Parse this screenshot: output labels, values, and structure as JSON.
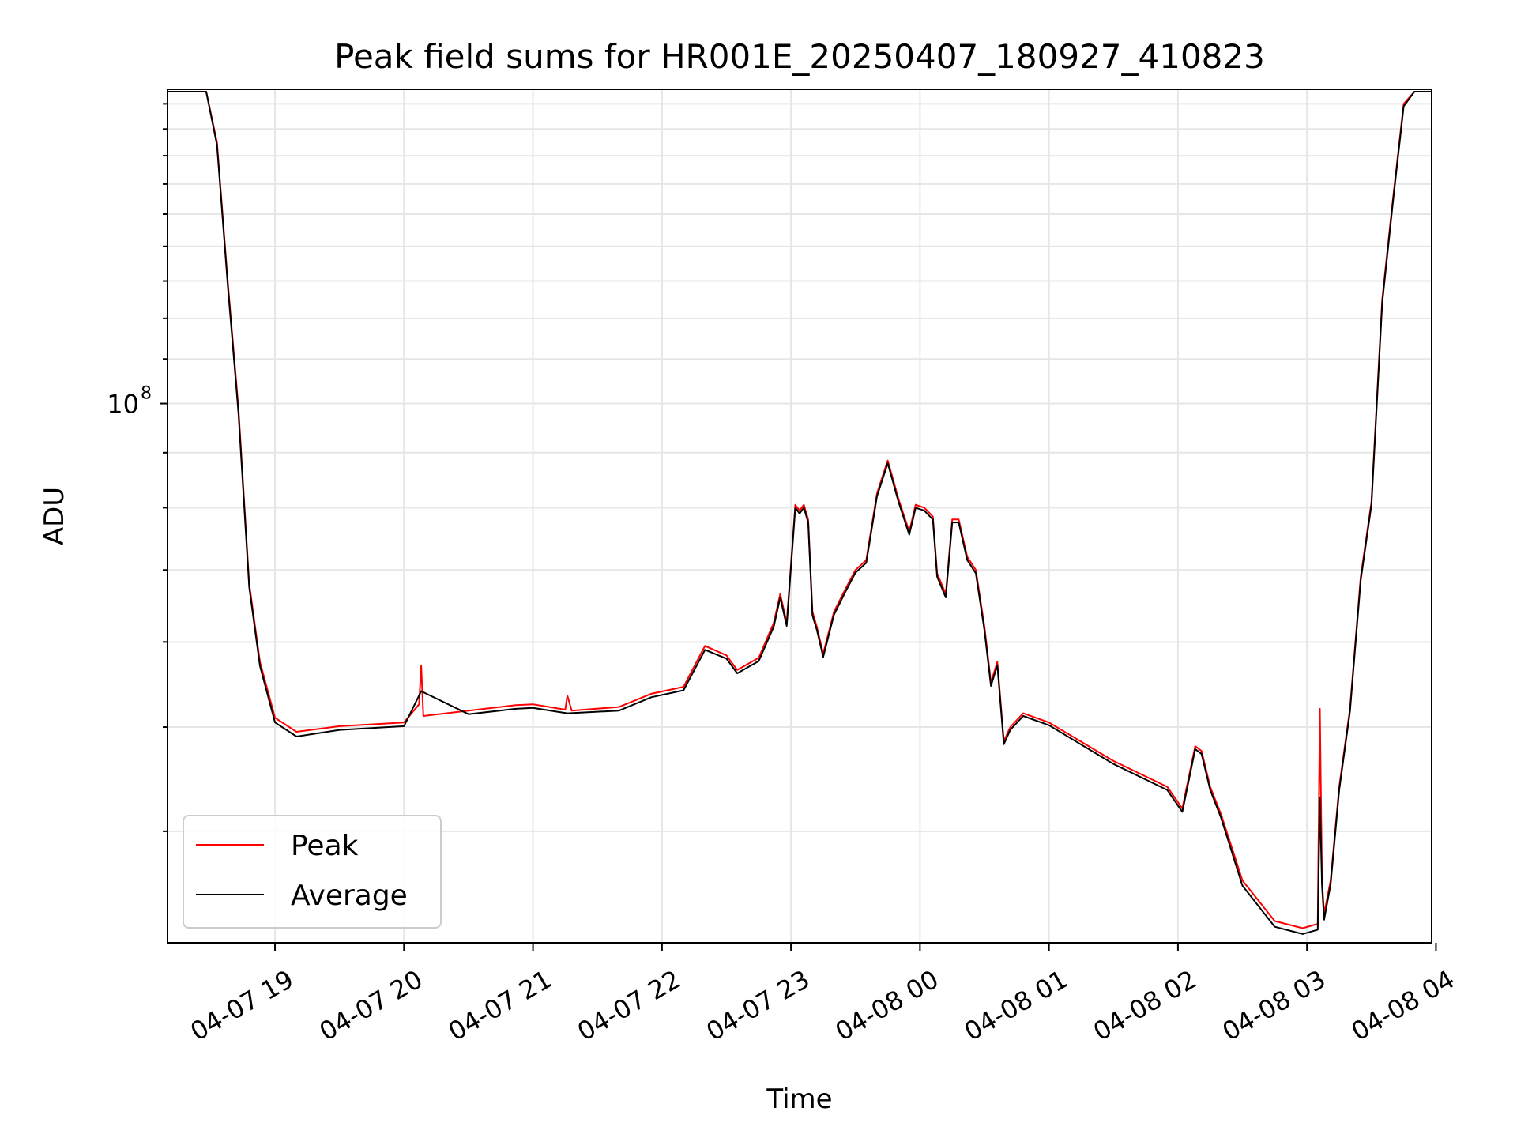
{
  "chart_data": {
    "type": "line",
    "title": "Peak field sums for HR001E_20250407_180927_410823",
    "xlabel": "Time",
    "ylabel": "ADU",
    "y_scale": "log",
    "x_range": [
      "2025-04-07 18:10",
      "2025-04-08 03:58"
    ],
    "ylim": [
      31500000,
      196000000
    ],
    "x_ticks": [
      "04-07 19",
      "04-07 20",
      "04-07 21",
      "04-07 22",
      "04-07 23",
      "04-08 00",
      "04-08 01",
      "04-08 02",
      "04-08 03",
      "04-08 04"
    ],
    "y_tick_labels": [
      {
        "value": 100000000,
        "base": "10",
        "exponent": "8"
      }
    ],
    "grid": true,
    "legend_position": "lower-left",
    "series": [
      {
        "name": "Peak",
        "color": "#ff0000",
        "x": [
          "2025-04-07 18:10",
          "2025-04-07 18:28",
          "2025-04-07 18:33",
          "2025-04-07 18:38",
          "2025-04-07 18:43",
          "2025-04-07 18:48",
          "2025-04-07 18:53",
          "2025-04-07 19:00",
          "2025-04-07 19:10",
          "2025-04-07 19:30",
          "2025-04-07 20:00",
          "2025-04-07 20:07",
          "2025-04-07 20:08",
          "2025-04-07 20:09",
          "2025-04-07 20:30",
          "2025-04-07 20:52",
          "2025-04-07 21:00",
          "2025-04-07 21:15",
          "2025-04-07 21:16",
          "2025-04-07 21:18",
          "2025-04-07 21:40",
          "2025-04-07 21:55",
          "2025-04-07 22:10",
          "2025-04-07 22:20",
          "2025-04-07 22:30",
          "2025-04-07 22:35",
          "2025-04-07 22:45",
          "2025-04-07 22:52",
          "2025-04-07 22:55",
          "2025-04-07 22:58",
          "2025-04-07 23:02",
          "2025-04-07 23:04",
          "2025-04-07 23:06",
          "2025-04-07 23:08",
          "2025-04-07 23:10",
          "2025-04-07 23:12",
          "2025-04-07 23:15",
          "2025-04-07 23:20",
          "2025-04-07 23:25",
          "2025-04-07 23:30",
          "2025-04-07 23:35",
          "2025-04-07 23:40",
          "2025-04-07 23:45",
          "2025-04-07 23:50",
          "2025-04-07 23:55",
          "2025-04-07 23:58",
          "2025-04-08 00:02",
          "2025-04-08 00:06",
          "2025-04-08 00:08",
          "2025-04-08 00:12",
          "2025-04-08 00:15",
          "2025-04-08 00:18",
          "2025-04-08 00:22",
          "2025-04-08 00:26",
          "2025-04-08 00:30",
          "2025-04-08 00:33",
          "2025-04-08 00:36",
          "2025-04-08 00:39",
          "2025-04-08 00:42",
          "2025-04-08 00:48",
          "2025-04-08 01:00",
          "2025-04-08 01:30",
          "2025-04-08 01:55",
          "2025-04-08 02:02",
          "2025-04-08 02:08",
          "2025-04-08 02:11",
          "2025-04-08 02:15",
          "2025-04-08 02:20",
          "2025-04-08 02:30",
          "2025-04-08 02:45",
          "2025-04-08 02:58",
          "2025-04-08 03:05",
          "2025-04-08 03:06",
          "2025-04-08 03:07",
          "2025-04-08 03:08",
          "2025-04-08 03:11",
          "2025-04-08 03:15",
          "2025-04-08 03:20",
          "2025-04-08 03:25",
          "2025-04-08 03:30",
          "2025-04-08 03:35",
          "2025-04-08 03:40",
          "2025-04-08 03:45",
          "2025-04-08 03:50",
          "2025-04-08 03:54",
          "2025-04-08 03:58"
        ],
        "y": [
          195000000,
          195000000,
          175000000,
          130000000,
          99000000,
          68000000,
          57500000,
          51000000,
          49500000,
          50100000,
          50500000,
          52500000,
          57000000,
          51200000,
          51800000,
          52400000,
          52500000,
          51900000,
          53500000,
          51800000,
          52200000,
          53700000,
          54500000,
          59500000,
          58300000,
          56500000,
          58000000,
          62500000,
          66500000,
          62500000,
          80500000,
          79500000,
          80500000,
          78000000,
          64000000,
          62000000,
          58500000,
          64000000,
          67000000,
          70000000,
          71500000,
          82500000,
          88500000,
          81500000,
          76000000,
          80500000,
          80000000,
          78500000,
          69500000,
          66500000,
          78000000,
          78000000,
          72000000,
          70000000,
          62000000,
          55000000,
          57500000,
          48500000,
          50000000,
          51500000,
          50500000,
          46500000,
          44000000,
          42000000,
          48000000,
          47500000,
          44000000,
          41500000,
          36000000,
          33000000,
          32500000,
          32800000,
          52000000,
          36000000,
          33500000,
          36000000,
          44000000,
          52000000,
          69000000,
          81000000,
          125000000,
          155000000,
          190000000,
          195000000,
          195000000,
          195000000
        ]
      },
      {
        "name": "Average",
        "color": "#000000",
        "x": [
          "2025-04-07 18:10",
          "2025-04-07 18:28",
          "2025-04-07 18:33",
          "2025-04-07 18:38",
          "2025-04-07 18:43",
          "2025-04-07 18:48",
          "2025-04-07 18:53",
          "2025-04-07 19:00",
          "2025-04-07 19:10",
          "2025-04-07 19:30",
          "2025-04-07 20:00",
          "2025-04-07 20:08",
          "2025-04-07 20:30",
          "2025-04-07 20:52",
          "2025-04-07 21:00",
          "2025-04-07 21:16",
          "2025-04-07 21:40",
          "2025-04-07 21:55",
          "2025-04-07 22:10",
          "2025-04-07 22:20",
          "2025-04-07 22:30",
          "2025-04-07 22:35",
          "2025-04-07 22:45",
          "2025-04-07 22:52",
          "2025-04-07 22:55",
          "2025-04-07 22:58",
          "2025-04-07 23:02",
          "2025-04-07 23:04",
          "2025-04-07 23:06",
          "2025-04-07 23:08",
          "2025-04-07 23:10",
          "2025-04-07 23:12",
          "2025-04-07 23:15",
          "2025-04-07 23:20",
          "2025-04-07 23:25",
          "2025-04-07 23:30",
          "2025-04-07 23:35",
          "2025-04-07 23:40",
          "2025-04-07 23:45",
          "2025-04-07 23:50",
          "2025-04-07 23:55",
          "2025-04-07 23:58",
          "2025-04-08 00:02",
          "2025-04-08 00:06",
          "2025-04-08 00:08",
          "2025-04-08 00:12",
          "2025-04-08 00:15",
          "2025-04-08 00:18",
          "2025-04-08 00:22",
          "2025-04-08 00:26",
          "2025-04-08 00:30",
          "2025-04-08 00:33",
          "2025-04-08 00:36",
          "2025-04-08 00:39",
          "2025-04-08 00:42",
          "2025-04-08 00:48",
          "2025-04-08 01:00",
          "2025-04-08 01:30",
          "2025-04-08 01:55",
          "2025-04-08 02:02",
          "2025-04-08 02:08",
          "2025-04-08 02:11",
          "2025-04-08 02:15",
          "2025-04-08 02:20",
          "2025-04-08 02:30",
          "2025-04-08 02:45",
          "2025-04-08 02:58",
          "2025-04-08 03:05",
          "2025-04-08 03:06",
          "2025-04-08 03:07",
          "2025-04-08 03:08",
          "2025-04-08 03:11",
          "2025-04-08 03:15",
          "2025-04-08 03:20",
          "2025-04-08 03:25",
          "2025-04-08 03:30",
          "2025-04-08 03:35",
          "2025-04-08 03:40",
          "2025-04-08 03:45",
          "2025-04-08 03:50",
          "2025-04-08 03:54",
          "2025-04-08 03:58"
        ],
        "y": [
          195000000,
          195000000,
          174000000,
          129000000,
          98000000,
          67500000,
          57000000,
          50500000,
          49000000,
          49700000,
          50100000,
          54000000,
          51400000,
          52000000,
          52100000,
          51500000,
          51800000,
          53300000,
          54100000,
          59000000,
          57900000,
          56100000,
          57600000,
          62000000,
          66000000,
          62100000,
          80000000,
          79000000,
          80000000,
          77500000,
          63500000,
          61600000,
          58100000,
          63600000,
          66600000,
          69600000,
          71100000,
          82000000,
          88000000,
          81000000,
          75500000,
          80000000,
          79500000,
          78000000,
          69000000,
          66000000,
          77500000,
          77500000,
          71500000,
          69500000,
          61500000,
          54600000,
          57100000,
          48200000,
          49700000,
          51200000,
          50200000,
          46200000,
          43700000,
          41700000,
          47700000,
          47200000,
          43700000,
          41200000,
          35600000,
          32600000,
          32100000,
          32400000,
          43000000,
          35600000,
          33100000,
          35700000,
          43700000,
          51700000,
          68500000,
          80500000,
          124000000,
          154000000,
          189000000,
          195000000,
          195000000,
          195000000
        ]
      }
    ]
  }
}
